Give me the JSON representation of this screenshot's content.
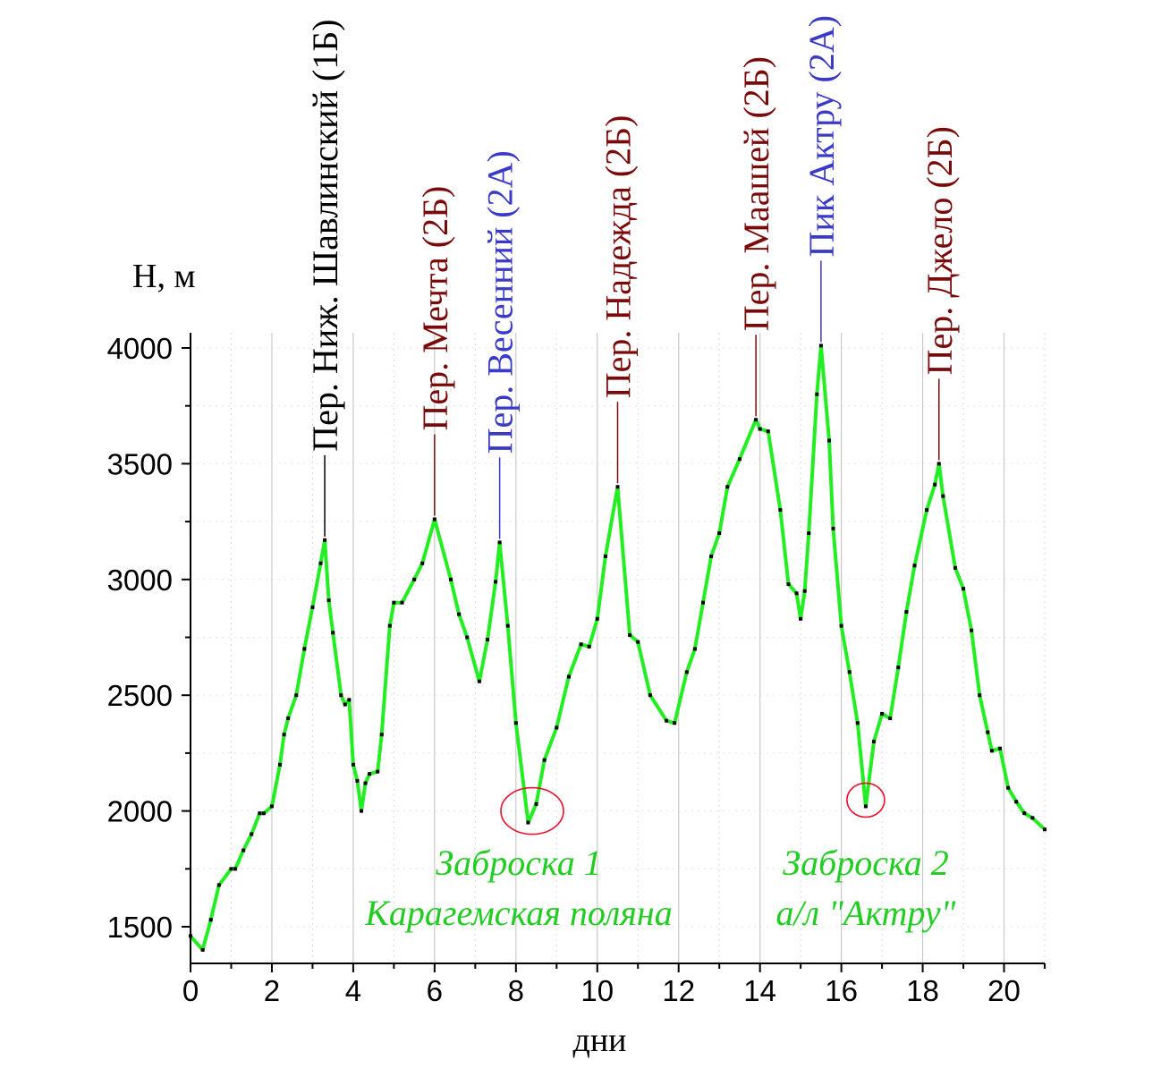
{
  "chart_data": {
    "type": "line",
    "title": "",
    "xlabel": "дни",
    "ylabel": "H, м",
    "xlim": [
      0,
      21
    ],
    "ylim": [
      1350,
      4080
    ],
    "x_ticks": [
      0,
      2,
      4,
      6,
      8,
      10,
      12,
      14,
      16,
      18,
      20
    ],
    "y_ticks": [
      1500,
      2000,
      2500,
      3000,
      3500,
      4000
    ],
    "grid": "vertical dotted at every day",
    "series": [
      {
        "line_color": "#22ee22",
        "marker_color": "#000000",
        "points": [
          [
            0.0,
            1460
          ],
          [
            0.3,
            1400
          ],
          [
            0.5,
            1530
          ],
          [
            0.7,
            1680
          ],
          [
            1.0,
            1750
          ],
          [
            1.1,
            1750
          ],
          [
            1.3,
            1830
          ],
          [
            1.5,
            1900
          ],
          [
            1.7,
            1990
          ],
          [
            1.8,
            1990
          ],
          [
            2.0,
            2020
          ],
          [
            2.2,
            2200
          ],
          [
            2.3,
            2330
          ],
          [
            2.4,
            2400
          ],
          [
            2.6,
            2500
          ],
          [
            2.8,
            2700
          ],
          [
            3.0,
            2880
          ],
          [
            3.2,
            3070
          ],
          [
            3.3,
            3170
          ],
          [
            3.4,
            2910
          ],
          [
            3.5,
            2770
          ],
          [
            3.7,
            2500
          ],
          [
            3.8,
            2460
          ],
          [
            3.9,
            2480
          ],
          [
            4.0,
            2200
          ],
          [
            4.1,
            2130
          ],
          [
            4.2,
            2000
          ],
          [
            4.3,
            2120
          ],
          [
            4.4,
            2160
          ],
          [
            4.6,
            2170
          ],
          [
            4.7,
            2330
          ],
          [
            4.9,
            2800
          ],
          [
            5.0,
            2900
          ],
          [
            5.2,
            2900
          ],
          [
            5.5,
            3000
          ],
          [
            5.7,
            3070
          ],
          [
            6.0,
            3260
          ],
          [
            6.4,
            3000
          ],
          [
            6.6,
            2850
          ],
          [
            6.8,
            2750
          ],
          [
            7.1,
            2560
          ],
          [
            7.3,
            2740
          ],
          [
            7.5,
            2990
          ],
          [
            7.6,
            3160
          ],
          [
            7.8,
            2800
          ],
          [
            8.0,
            2380
          ],
          [
            8.3,
            1950
          ],
          [
            8.5,
            2030
          ],
          [
            8.7,
            2220
          ],
          [
            9.0,
            2360
          ],
          [
            9.3,
            2580
          ],
          [
            9.6,
            2720
          ],
          [
            9.8,
            2710
          ],
          [
            10.0,
            2830
          ],
          [
            10.2,
            3100
          ],
          [
            10.5,
            3400
          ],
          [
            10.8,
            2760
          ],
          [
            11.0,
            2730
          ],
          [
            11.3,
            2500
          ],
          [
            11.7,
            2390
          ],
          [
            11.9,
            2380
          ],
          [
            12.2,
            2600
          ],
          [
            12.4,
            2700
          ],
          [
            12.6,
            2900
          ],
          [
            12.8,
            3100
          ],
          [
            13.0,
            3200
          ],
          [
            13.2,
            3400
          ],
          [
            13.5,
            3520
          ],
          [
            13.9,
            3690
          ],
          [
            14.0,
            3650
          ],
          [
            14.2,
            3640
          ],
          [
            14.5,
            3300
          ],
          [
            14.7,
            2980
          ],
          [
            14.9,
            2940
          ],
          [
            15.0,
            2830
          ],
          [
            15.1,
            2950
          ],
          [
            15.2,
            3200
          ],
          [
            15.4,
            3800
          ],
          [
            15.5,
            4010
          ],
          [
            15.7,
            3600
          ],
          [
            15.8,
            3220
          ],
          [
            16.0,
            2800
          ],
          [
            16.2,
            2600
          ],
          [
            16.4,
            2380
          ],
          [
            16.6,
            2020
          ],
          [
            16.8,
            2300
          ],
          [
            17.0,
            2420
          ],
          [
            17.2,
            2400
          ],
          [
            17.4,
            2620
          ],
          [
            17.6,
            2860
          ],
          [
            17.8,
            3060
          ],
          [
            18.1,
            3300
          ],
          [
            18.3,
            3410
          ],
          [
            18.4,
            3500
          ],
          [
            18.5,
            3360
          ],
          [
            18.8,
            3050
          ],
          [
            19.0,
            2960
          ],
          [
            19.2,
            2780
          ],
          [
            19.4,
            2500
          ],
          [
            19.6,
            2340
          ],
          [
            19.7,
            2260
          ],
          [
            19.9,
            2270
          ],
          [
            20.1,
            2100
          ],
          [
            20.3,
            2040
          ],
          [
            20.5,
            1990
          ],
          [
            20.7,
            1970
          ],
          [
            21.0,
            1920
          ]
        ]
      }
    ],
    "peaks": [
      {
        "label": "Пер. Ниж. Шавлинский (1Б)",
        "x": 3.3,
        "y": 3170,
        "color": "#000000"
      },
      {
        "label": "Пер. Мечта (2Б)",
        "x": 6.0,
        "y": 3260,
        "color": "#7a0a0a"
      },
      {
        "label": "Пер. Весенний (2А)",
        "x": 7.6,
        "y": 3160,
        "color": "#3a3ac8"
      },
      {
        "label": "Пер. Надежда (2Б)",
        "x": 10.5,
        "y": 3400,
        "color": "#7a0a0a"
      },
      {
        "label": "Пер. Маашей (2Б)",
        "x": 13.9,
        "y": 3690,
        "color": "#7a0a0a"
      },
      {
        "label": "Пик Актру (2А)",
        "x": 15.5,
        "y": 4010,
        "color": "#3a3ac8"
      },
      {
        "label": "Пер. Джело (2Б)",
        "x": 18.4,
        "y": 3500,
        "color": "#7a0a0a"
      }
    ],
    "annotations": [
      {
        "x": 8.4,
        "y": 2000,
        "lines": [
          "Заброска 1",
          "Карагемская поляна"
        ]
      },
      {
        "x": 16.6,
        "y": 2020,
        "lines": [
          "Заброска 2",
          "а/л \"Актру\""
        ]
      }
    ]
  }
}
